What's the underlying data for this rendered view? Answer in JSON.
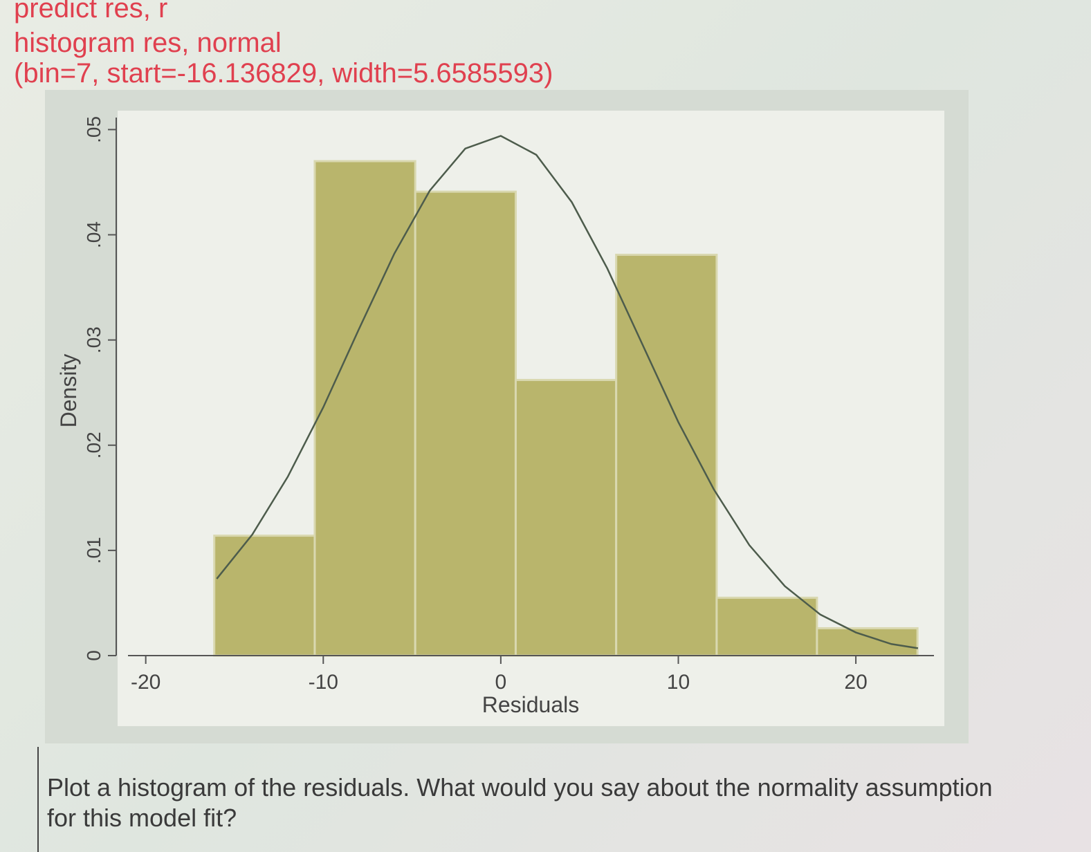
{
  "command_lines": [
    "predict res, r",
    "histogram res, normal",
    "(bin=7, start=-16.136829, width=5.6585593)"
  ],
  "question_lines": [
    "Plot a histogram of the residuals. What would you say about the normality assumption",
    "for this model fit?"
  ],
  "chart_data": {
    "type": "histogram",
    "x_label": "Residuals",
    "y_label": "Density",
    "bins": [
      -16.14,
      -10.48,
      -4.82,
      0.84,
      6.5,
      12.16,
      17.81,
      23.47
    ],
    "values": [
      0.0114,
      0.047,
      0.0441,
      0.0262,
      0.0381,
      0.0055,
      0.0026
    ],
    "color": "#b9b56c",
    "edge_color": "#d9d8b0",
    "normal_curve": {
      "color": "#4d5c4c",
      "x": [
        -16,
        -14,
        -12,
        -10,
        -8,
        -6,
        -4,
        -2,
        0,
        2,
        4,
        6,
        8,
        10,
        12,
        14,
        16,
        18,
        20,
        22,
        23.5
      ],
      "values": [
        0.0073,
        0.0115,
        0.017,
        0.0236,
        0.031,
        0.0382,
        0.0442,
        0.0482,
        0.0494,
        0.0476,
        0.0431,
        0.0368,
        0.0295,
        0.0222,
        0.0158,
        0.0105,
        0.0066,
        0.0039,
        0.0022,
        0.0011,
        0.0007
      ]
    },
    "xlim": [
      -21,
      24.4
    ],
    "ylim": [
      0,
      0.0518
    ],
    "xticks": [
      -20,
      -10,
      0,
      10,
      20
    ],
    "yticks": [
      0,
      {
        "value": 0.01,
        "label": ".01"
      },
      {
        "value": 0.02,
        "label": ".02"
      },
      {
        "value": 0.03,
        "label": ".03"
      },
      {
        "value": 0.04,
        "label": ".04"
      },
      {
        "value": 0.05,
        "label": ".05"
      }
    ]
  }
}
